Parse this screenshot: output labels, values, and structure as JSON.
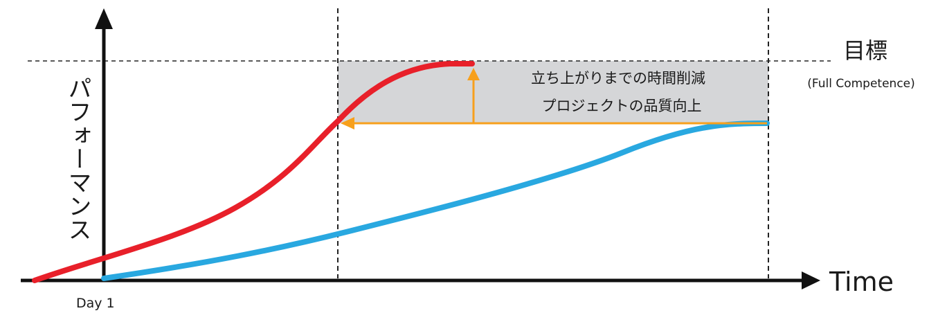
{
  "diagram": {
    "y_axis_label": "パフォーマンス",
    "x_axis_label": "Time",
    "day_label": "Day 1",
    "target_label": "目標",
    "target_sublabel": "(Full Competence)",
    "annotation_line1": "立ち上がりまでの時間削減",
    "annotation_line2": "プロジェクトの品質向上",
    "colors": {
      "fast_curve": "#e8202a",
      "slow_curve": "#29a8e0",
      "arrow": "#f7a01c",
      "shaded_region": "#d5d6d8",
      "axis": "#111111"
    }
  }
}
